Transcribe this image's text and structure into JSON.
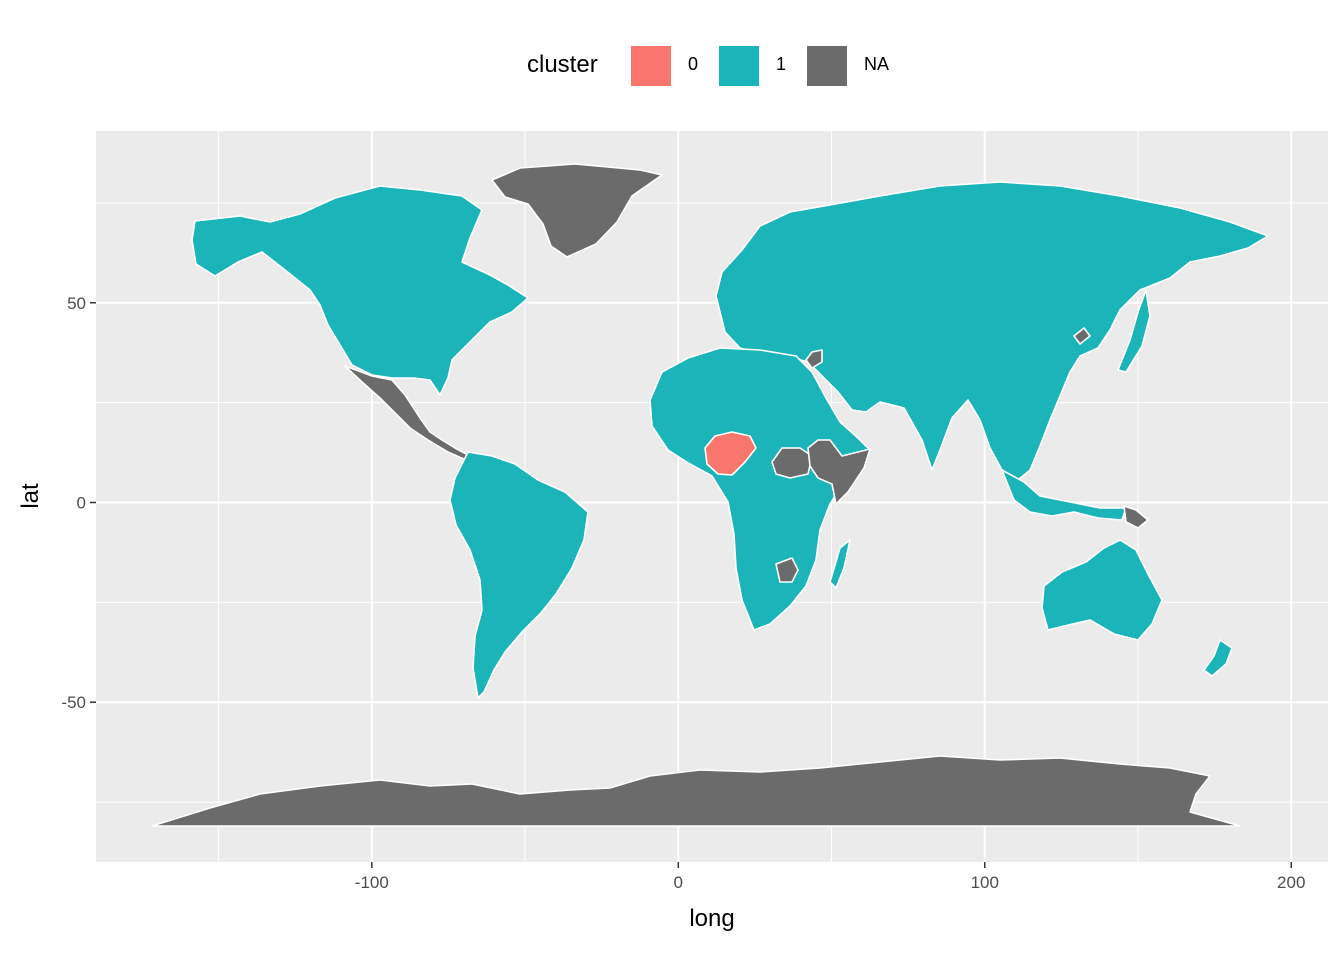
{
  "legend": {
    "title": "cluster",
    "items": [
      {
        "label": "0",
        "color": "#F8766D"
      },
      {
        "label": "1",
        "color": "#1BB4B8"
      },
      {
        "label": "NA",
        "color": "#6B6B6B"
      }
    ]
  },
  "axes": {
    "xlabel": "long",
    "ylabel": "lat",
    "xticks": [
      -100,
      0,
      100,
      200
    ],
    "yticks": [
      -50,
      0,
      50
    ]
  },
  "chart_data": {
    "type": "map",
    "xlabel": "long",
    "ylabel": "lat",
    "xlim": [
      -190,
      212
    ],
    "ylim": [
      -90,
      93
    ],
    "x_ticks": [
      -100,
      0,
      100,
      200
    ],
    "y_ticks": [
      -50,
      0,
      50
    ],
    "grid": true,
    "legend_position": "top",
    "legend_title": "cluster",
    "categories": [
      "0",
      "1",
      "NA"
    ],
    "colors": {
      "0": "#F8766D",
      "1": "#1BB4B8",
      "NA": "#6B6B6B"
    },
    "cluster_0": [
      "Nigeria"
    ],
    "cluster_NA": [
      "Greenland",
      "Antarctica",
      "Mexico",
      "Guatemala",
      "Honduras",
      "Panama",
      "South Sudan",
      "Ethiopia",
      "Somalia",
      "Zimbabwe",
      "Syria",
      "North Korea",
      "Papua New Guinea"
    ],
    "cluster_1": "all other countries"
  }
}
